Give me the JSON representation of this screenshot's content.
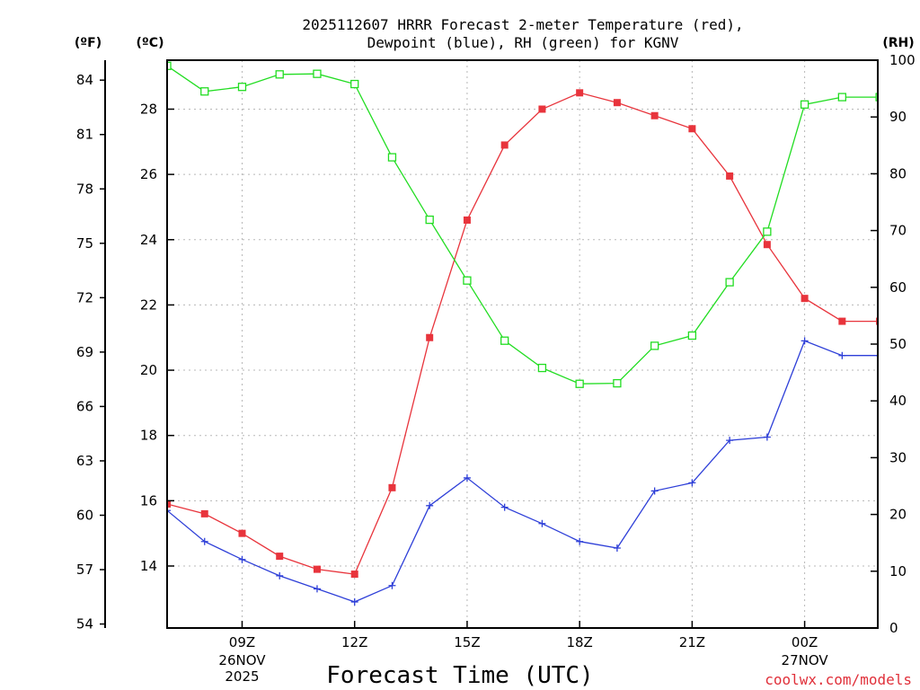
{
  "chart_data": {
    "type": "line",
    "title": "2025112607 HRRR Forecast 2-meter Temperature (red),",
    "subtitle": "Dewpoint (blue), RH (green) for KGNV",
    "unit_labels": {
      "fahrenheit": "(ºF)",
      "celsius": "(ºC)",
      "rh": "(RH)"
    },
    "xlabel": "Forecast Time (UTC)",
    "credit": "coolwx.com/models",
    "x_hours": [
      0,
      1,
      2,
      3,
      4,
      5,
      6,
      7,
      8,
      9,
      10,
      11,
      12,
      13,
      14,
      15,
      16,
      17,
      18,
      19
    ],
    "x_ticks": [
      {
        "hour": 2,
        "label": "09Z",
        "sub": [
          "26NOV",
          "2025"
        ]
      },
      {
        "hour": 5,
        "label": "12Z",
        "sub": []
      },
      {
        "hour": 8,
        "label": "15Z",
        "sub": []
      },
      {
        "hour": 11,
        "label": "18Z",
        "sub": []
      },
      {
        "hour": 14,
        "label": "21Z",
        "sub": []
      },
      {
        "hour": 17,
        "label": "00Z",
        "sub": [
          "27NOV"
        ]
      }
    ],
    "yleft_celsius": {
      "min": 12.1,
      "max": 29.5,
      "ticks": [
        14,
        16,
        18,
        20,
        22,
        24,
        26,
        28
      ]
    },
    "yleft_fahrenheit": {
      "ticks": [
        54,
        57,
        60,
        63,
        66,
        69,
        72,
        75,
        78,
        81,
        84
      ]
    },
    "yright_rh": {
      "min": 0,
      "max": 100,
      "ticks": [
        0,
        10,
        20,
        30,
        40,
        50,
        60,
        70,
        80,
        90,
        100
      ]
    },
    "series": [
      {
        "name": "2-meter Temperature",
        "unit": "C",
        "color": "#e8343c",
        "marker": "filled-square",
        "values": [
          15.9,
          15.6,
          15.0,
          14.3,
          13.9,
          13.75,
          16.4,
          21.0,
          24.6,
          26.9,
          28.0,
          28.5,
          28.2,
          27.8,
          27.4,
          25.95,
          23.85,
          22.2,
          21.5,
          21.5
        ]
      },
      {
        "name": "Dewpoint",
        "unit": "C",
        "color": "#2e3fd8",
        "marker": "plus",
        "values": [
          15.7,
          14.75,
          14.2,
          13.7,
          13.3,
          12.9,
          13.4,
          15.85,
          16.7,
          15.8,
          15.3,
          14.75,
          14.55,
          16.3,
          16.55,
          17.85,
          17.95,
          20.9,
          20.45,
          20.45
        ]
      },
      {
        "name": "RH",
        "unit": "%",
        "color": "#22dd22",
        "marker": "open-square",
        "values": [
          99.0,
          94.5,
          95.3,
          97.5,
          97.6,
          95.8,
          82.9,
          71.9,
          61.2,
          50.6,
          45.8,
          43.0,
          43.1,
          49.7,
          51.5,
          60.9,
          69.8,
          92.2,
          93.5,
          93.5
        ]
      }
    ]
  }
}
